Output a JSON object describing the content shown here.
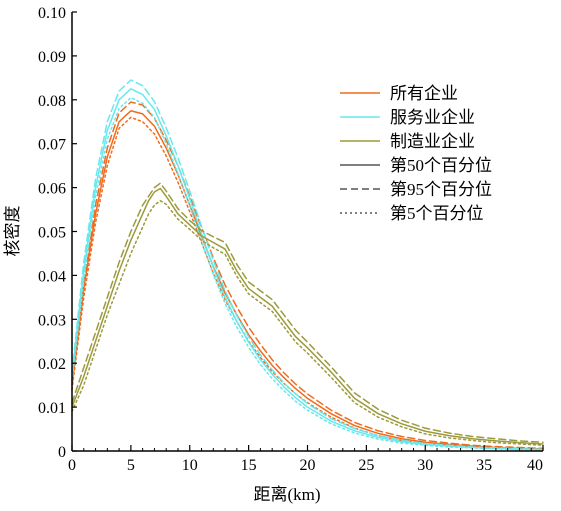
{
  "chart_data": {
    "type": "line",
    "title": "",
    "xlabel": "距离(km)",
    "ylabel": "核密度",
    "xlim": [
      0,
      40
    ],
    "ylim": [
      0,
      0.1
    ],
    "x_ticks": [
      "0",
      "5",
      "10",
      "15",
      "20",
      "25",
      "30",
      "35",
      "40"
    ],
    "y_ticks": [
      "0",
      "0.01",
      "0.02",
      "0.03",
      "0.04",
      "0.05",
      "0.06",
      "0.07",
      "0.08",
      "0.09",
      "0.10"
    ],
    "grid": false,
    "legend_position": "top-right",
    "legend": [
      {
        "label": "所有企业",
        "color": "#f26b1d",
        "dash": "solid"
      },
      {
        "label": "服务业企业",
        "color": "#66e8ee",
        "dash": "solid"
      },
      {
        "label": "制造业企业",
        "color": "#9c9a3c",
        "dash": "solid"
      },
      {
        "label": "第50个百分位",
        "color": "#555555",
        "dash": "solid"
      },
      {
        "label": "第95个百分位",
        "color": "#555555",
        "dash": "dashed"
      },
      {
        "label": "第5个百分位",
        "color": "#555555",
        "dash": "dotted"
      }
    ],
    "series": [
      {
        "group": "所有企业",
        "percentile": "第50个百分位",
        "color": "#f26b1d",
        "dash": "solid",
        "x": [
          0,
          1,
          2,
          3,
          4,
          5,
          6,
          7,
          8,
          9,
          10,
          11,
          12,
          13,
          14,
          15,
          16,
          17,
          18,
          19,
          20,
          22,
          24,
          26,
          28,
          30,
          32,
          34,
          36,
          38,
          40
        ],
        "y": [
          0.015,
          0.037,
          0.054,
          0.067,
          0.075,
          0.0775,
          0.0768,
          0.074,
          0.069,
          0.063,
          0.056,
          0.049,
          0.042,
          0.036,
          0.031,
          0.0265,
          0.0228,
          0.0195,
          0.0167,
          0.0142,
          0.012,
          0.0085,
          0.0058,
          0.004,
          0.0028,
          0.002,
          0.0015,
          0.0011,
          0.0008,
          0.0006,
          0.0005
        ]
      },
      {
        "group": "所有企业",
        "percentile": "第95个百分位",
        "color": "#f26b1d",
        "dash": "dashed",
        "x": [
          0,
          1,
          2,
          3,
          4,
          5,
          6,
          7,
          8,
          9,
          10,
          11,
          12,
          13,
          14,
          15,
          16,
          17,
          18,
          19,
          20,
          22,
          24,
          26,
          28,
          30,
          32,
          34,
          36,
          38,
          40
        ],
        "y": [
          0.016,
          0.038,
          0.056,
          0.069,
          0.077,
          0.0795,
          0.0788,
          0.0758,
          0.0708,
          0.065,
          0.058,
          0.051,
          0.044,
          0.0378,
          0.0328,
          0.0282,
          0.0243,
          0.0208,
          0.0178,
          0.0152,
          0.013,
          0.0093,
          0.0065,
          0.0046,
          0.0033,
          0.0024,
          0.0018,
          0.0013,
          0.001,
          0.0008,
          0.0006
        ]
      },
      {
        "group": "所有企业",
        "percentile": "第5个百分位",
        "color": "#f26b1d",
        "dash": "dotted",
        "x": [
          0,
          1,
          2,
          3,
          4,
          5,
          6,
          7,
          8,
          9,
          10,
          11,
          12,
          13,
          14,
          15,
          16,
          17,
          18,
          19,
          20,
          22,
          24,
          26,
          28,
          30,
          32,
          34,
          36,
          38,
          40
        ],
        "y": [
          0.014,
          0.035,
          0.052,
          0.065,
          0.0735,
          0.076,
          0.075,
          0.0722,
          0.0672,
          0.0612,
          0.0545,
          0.0475,
          0.0405,
          0.0345,
          0.0295,
          0.025,
          0.0213,
          0.0181,
          0.0154,
          0.013,
          0.011,
          0.0077,
          0.0052,
          0.0035,
          0.0024,
          0.0017,
          0.0012,
          0.0009,
          0.0006,
          0.0005,
          0.0004
        ]
      },
      {
        "group": "服务业企业",
        "percentile": "第50个百分位",
        "color": "#66e8ee",
        "dash": "solid",
        "x": [
          0,
          1,
          2,
          3,
          4,
          5,
          6,
          7,
          8,
          9,
          10,
          11,
          12,
          13,
          14,
          15,
          16,
          17,
          18,
          19,
          20,
          22,
          24,
          26,
          28,
          30,
          32,
          34,
          36,
          38,
          40
        ],
        "y": [
          0.017,
          0.041,
          0.06,
          0.073,
          0.08,
          0.0825,
          0.0812,
          0.0778,
          0.0718,
          0.065,
          0.0575,
          0.0495,
          0.0418,
          0.035,
          0.0295,
          0.0248,
          0.0208,
          0.0175,
          0.0146,
          0.0121,
          0.01,
          0.0068,
          0.0046,
          0.0031,
          0.0021,
          0.0015,
          0.0011,
          0.0008,
          0.0006,
          0.0004,
          0.0003
        ]
      },
      {
        "group": "服务业企业",
        "percentile": "第95个百分位",
        "color": "#66e8ee",
        "dash": "dashed",
        "x": [
          0,
          1,
          2,
          3,
          4,
          5,
          6,
          7,
          8,
          9,
          10,
          11,
          12,
          13,
          14,
          15,
          16,
          17,
          18,
          19,
          20,
          22,
          24,
          26,
          28,
          30,
          32,
          34,
          36,
          38,
          40
        ],
        "y": [
          0.018,
          0.043,
          0.062,
          0.075,
          0.082,
          0.0845,
          0.0832,
          0.0796,
          0.0736,
          0.0668,
          0.0592,
          0.0512,
          0.0434,
          0.0365,
          0.0308,
          0.026,
          0.0219,
          0.0185,
          0.0155,
          0.013,
          0.0108,
          0.0074,
          0.0051,
          0.0035,
          0.0024,
          0.0017,
          0.0013,
          0.0009,
          0.0007,
          0.0005,
          0.0004
        ]
      },
      {
        "group": "服务业企业",
        "percentile": "第5个百分位",
        "color": "#66e8ee",
        "dash": "dotted",
        "x": [
          0,
          1,
          2,
          3,
          4,
          5,
          6,
          7,
          8,
          9,
          10,
          11,
          12,
          13,
          14,
          15,
          16,
          17,
          18,
          19,
          20,
          22,
          24,
          26,
          28,
          30,
          32,
          34,
          36,
          38,
          40
        ],
        "y": [
          0.016,
          0.039,
          0.058,
          0.071,
          0.078,
          0.0805,
          0.0792,
          0.076,
          0.07,
          0.0632,
          0.0558,
          0.0478,
          0.0402,
          0.0336,
          0.0282,
          0.0236,
          0.0197,
          0.0165,
          0.0137,
          0.0113,
          0.0093,
          0.0062,
          0.0041,
          0.0027,
          0.0018,
          0.0013,
          0.0009,
          0.0007,
          0.0005,
          0.0003,
          0.0002
        ]
      },
      {
        "group": "制造业企业",
        "percentile": "第50个百分位",
        "color": "#9c9a3c",
        "dash": "solid",
        "x": [
          0,
          1,
          2,
          3,
          4,
          5,
          5.5,
          6,
          6.5,
          7,
          7.5,
          8,
          9,
          10,
          11,
          12,
          13,
          14,
          15,
          16,
          17,
          18,
          19,
          20,
          22,
          24,
          26,
          28,
          30,
          32,
          34,
          36,
          38,
          40
        ],
        "y": [
          0.01,
          0.017,
          0.025,
          0.033,
          0.041,
          0.048,
          0.051,
          0.054,
          0.057,
          0.059,
          0.0598,
          0.058,
          0.054,
          0.0515,
          0.049,
          0.0475,
          0.046,
          0.041,
          0.037,
          0.035,
          0.033,
          0.0295,
          0.026,
          0.0235,
          0.018,
          0.012,
          0.0085,
          0.0062,
          0.0045,
          0.0035,
          0.0028,
          0.0023,
          0.0019,
          0.0016
        ]
      },
      {
        "group": "制造业企业",
        "percentile": "第95个百分位",
        "color": "#9c9a3c",
        "dash": "dashed",
        "x": [
          0,
          1,
          2,
          3,
          4,
          5,
          5.5,
          6,
          6.5,
          7,
          7.5,
          8,
          9,
          10,
          11,
          12,
          13,
          14,
          15,
          16,
          17,
          18,
          19,
          20,
          22,
          24,
          26,
          28,
          30,
          32,
          34,
          36,
          38,
          40
        ],
        "y": [
          0.011,
          0.019,
          0.027,
          0.035,
          0.043,
          0.05,
          0.053,
          0.056,
          0.058,
          0.06,
          0.061,
          0.0592,
          0.0552,
          0.0525,
          0.0502,
          0.0488,
          0.0475,
          0.0425,
          0.0385,
          0.0365,
          0.0345,
          0.031,
          0.0275,
          0.0248,
          0.0192,
          0.0132,
          0.0095,
          0.007,
          0.0052,
          0.0041,
          0.0033,
          0.0028,
          0.0023,
          0.002
        ]
      },
      {
        "group": "制造业企业",
        "percentile": "第5个百分位",
        "color": "#9c9a3c",
        "dash": "dotted",
        "x": [
          0,
          1,
          2,
          3,
          4,
          5,
          5.5,
          6,
          6.5,
          7,
          7.5,
          8,
          9,
          10,
          11,
          12,
          13,
          14,
          15,
          16,
          17,
          18,
          19,
          20,
          22,
          24,
          26,
          28,
          30,
          32,
          34,
          36,
          38,
          40
        ],
        "y": [
          0.009,
          0.015,
          0.023,
          0.031,
          0.038,
          0.045,
          0.048,
          0.051,
          0.054,
          0.056,
          0.057,
          0.0562,
          0.0528,
          0.0505,
          0.048,
          0.0463,
          0.0448,
          0.0398,
          0.0358,
          0.0338,
          0.0318,
          0.0283,
          0.0248,
          0.0223,
          0.0168,
          0.011,
          0.0077,
          0.0055,
          0.0039,
          0.003,
          0.0024,
          0.0019,
          0.0016,
          0.0013
        ]
      }
    ]
  }
}
